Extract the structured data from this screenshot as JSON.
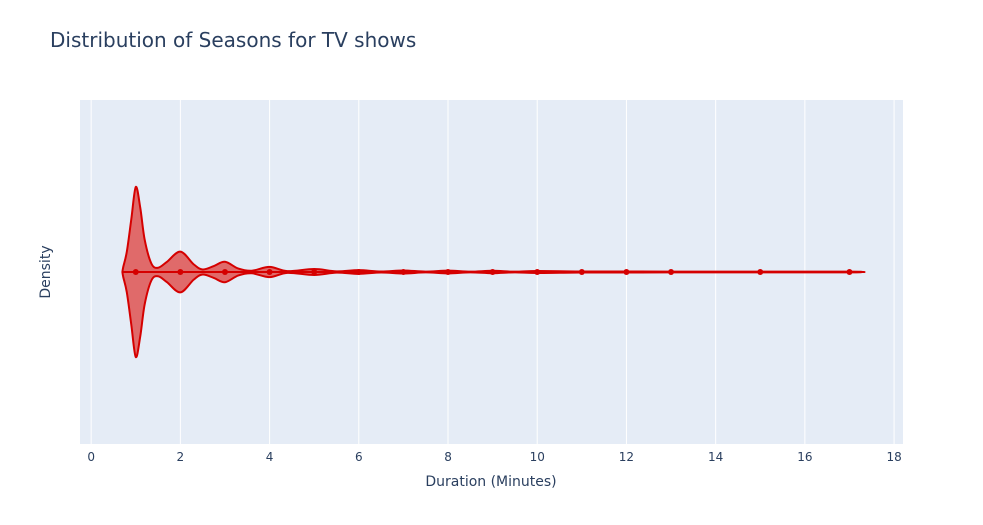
{
  "chart_data": {
    "type": "violin",
    "title": "Distribution of Seasons for TV shows",
    "xlabel": "Duration (Minutes)",
    "ylabel": "Density",
    "xlim": [
      -0.25,
      18.2
    ],
    "xticks": [
      0,
      2,
      4,
      6,
      8,
      10,
      12,
      14,
      16,
      18
    ],
    "grid": true,
    "legend": "none",
    "colors": {
      "line": "#d50000",
      "fill": "#e06a6a",
      "plot_bg": "#e5ecf6",
      "grid": "#ffffff",
      "text": "#2a3f5f"
    },
    "density": [
      {
        "x": 0.7,
        "d": 0.0
      },
      {
        "x": 0.72,
        "d": 0.06
      },
      {
        "x": 0.8,
        "d": 0.24
      },
      {
        "x": 0.9,
        "d": 0.62
      },
      {
        "x": 1.0,
        "d": 1.0
      },
      {
        "x": 1.1,
        "d": 0.76
      },
      {
        "x": 1.2,
        "d": 0.38
      },
      {
        "x": 1.35,
        "d": 0.1
      },
      {
        "x": 1.5,
        "d": 0.05
      },
      {
        "x": 1.7,
        "d": 0.12
      },
      {
        "x": 2.0,
        "d": 0.24
      },
      {
        "x": 2.3,
        "d": 0.09
      },
      {
        "x": 2.5,
        "d": 0.03
      },
      {
        "x": 2.75,
        "d": 0.07
      },
      {
        "x": 3.0,
        "d": 0.12
      },
      {
        "x": 3.3,
        "d": 0.04
      },
      {
        "x": 3.6,
        "d": 0.015
      },
      {
        "x": 4.0,
        "d": 0.06
      },
      {
        "x": 4.4,
        "d": 0.01
      },
      {
        "x": 5.0,
        "d": 0.035
      },
      {
        "x": 5.5,
        "d": 0.008
      },
      {
        "x": 6.0,
        "d": 0.022
      },
      {
        "x": 6.5,
        "d": 0.006
      },
      {
        "x": 7.0,
        "d": 0.018
      },
      {
        "x": 7.5,
        "d": 0.005
      },
      {
        "x": 8.0,
        "d": 0.016
      },
      {
        "x": 8.5,
        "d": 0.004
      },
      {
        "x": 9.0,
        "d": 0.014
      },
      {
        "x": 9.5,
        "d": 0.004
      },
      {
        "x": 10.0,
        "d": 0.012
      },
      {
        "x": 11.0,
        "d": 0.006
      },
      {
        "x": 12.0,
        "d": 0.006
      },
      {
        "x": 13.0,
        "d": 0.005
      },
      {
        "x": 15.0,
        "d": 0.005
      },
      {
        "x": 17.0,
        "d": 0.004
      },
      {
        "x": 17.3,
        "d": 0.0
      }
    ],
    "points": [
      1,
      2,
      3,
      4,
      5,
      6,
      7,
      8,
      9,
      10,
      11,
      12,
      13,
      15,
      17
    ]
  }
}
